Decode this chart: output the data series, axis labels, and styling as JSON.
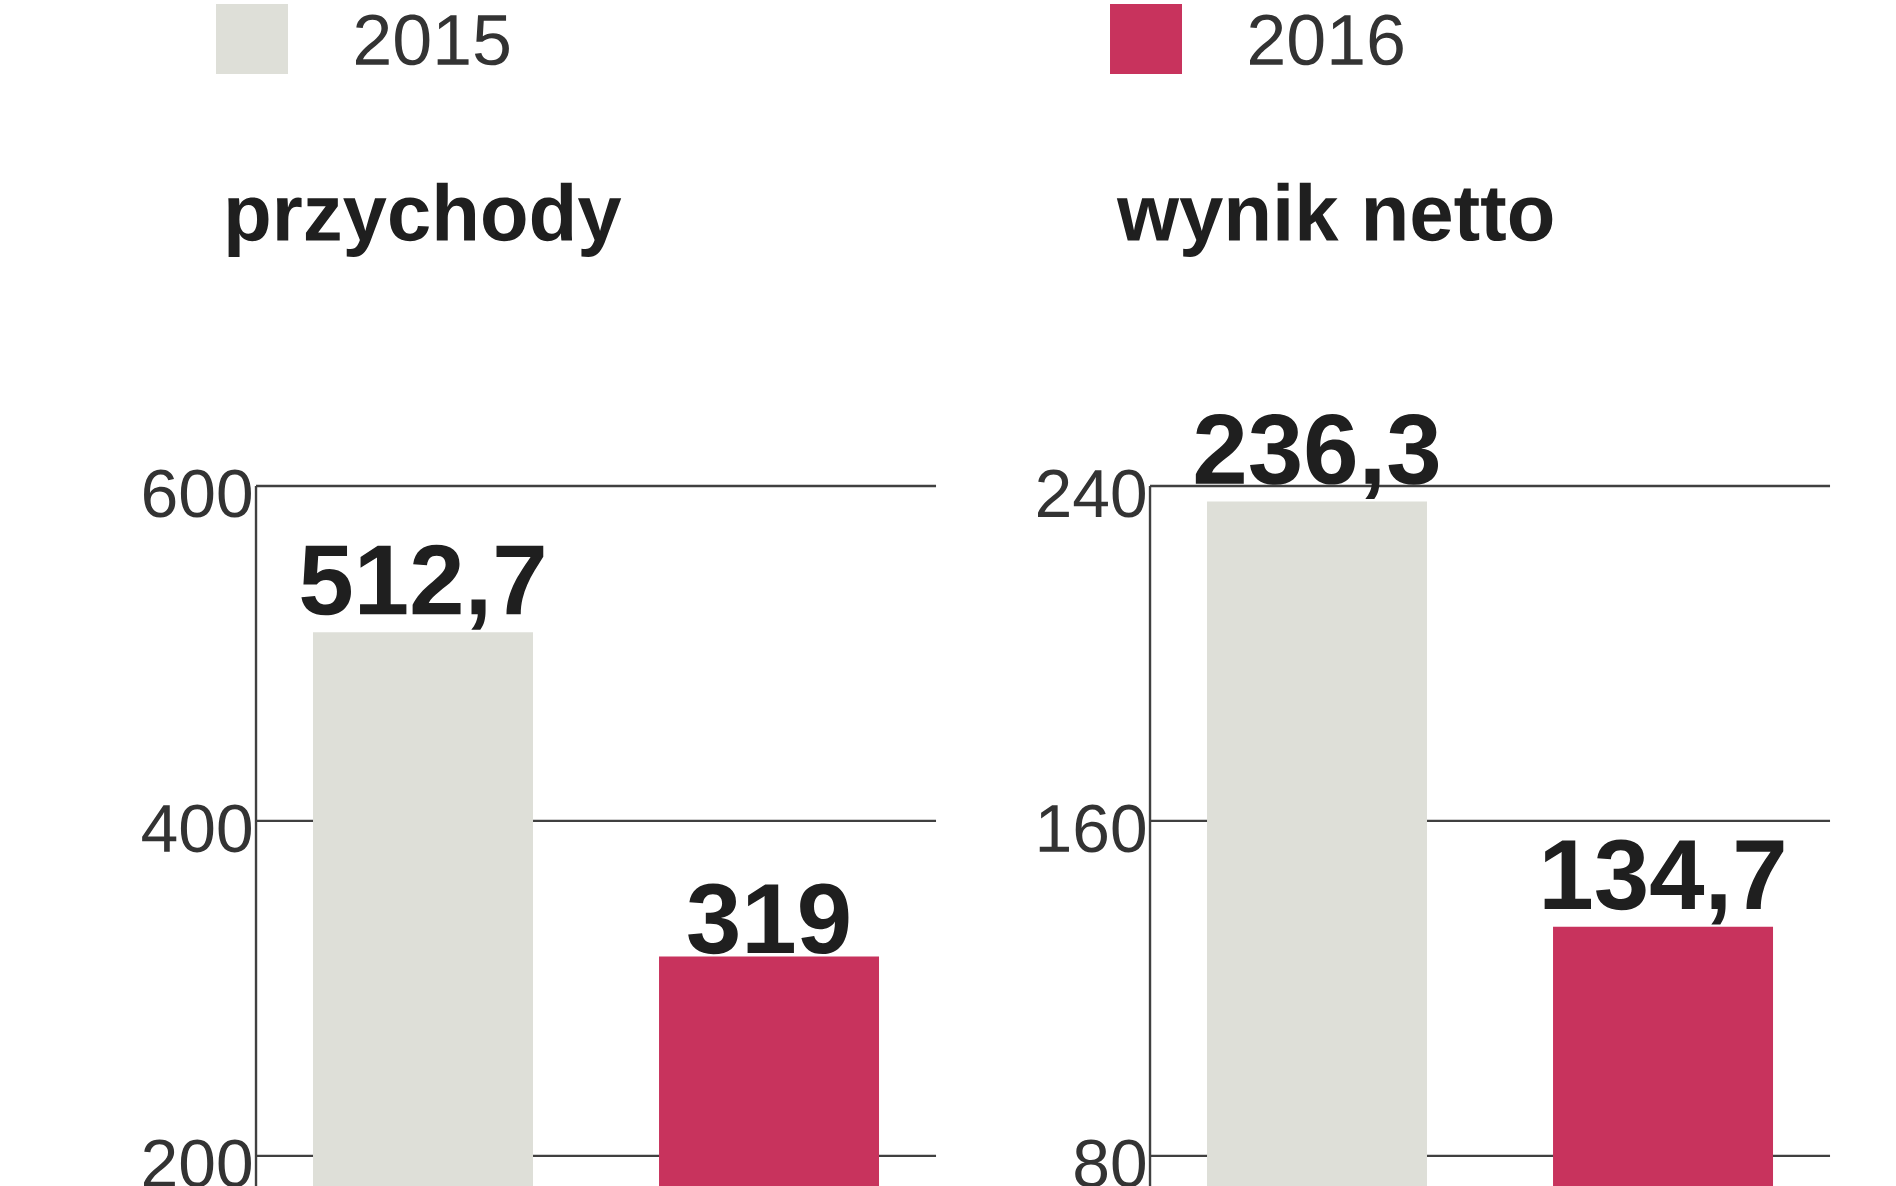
{
  "chart_data": [
    {
      "type": "bar",
      "title": "przychody",
      "categories": [
        null
      ],
      "ylim": [
        182,
        600
      ],
      "yticks": [
        200,
        400,
        600
      ],
      "grid": "y",
      "tick_labels": "y",
      "legend": "top",
      "series": [
        {
          "name": "2015",
          "color": "#dedfd8",
          "values": [
            512.7
          ],
          "value_labels": [
            "512,7"
          ]
        },
        {
          "name": "2016",
          "color": "#c8335d",
          "values": [
            319
          ],
          "value_labels": [
            "319"
          ]
        }
      ]
    },
    {
      "type": "bar",
      "title": "wynik netto",
      "categories": [
        null
      ],
      "ylim": [
        72.8,
        240
      ],
      "yticks": [
        80,
        160,
        240
      ],
      "grid": "y",
      "tick_labels": "y",
      "series": [
        {
          "color": "#dedfd8",
          "values": [
            236.3
          ],
          "value_labels": [
            "236,3"
          ]
        },
        {
          "color": "#c8335d",
          "values": [
            134.7
          ],
          "value_labels": [
            "134,7"
          ]
        }
      ]
    }
  ]
}
